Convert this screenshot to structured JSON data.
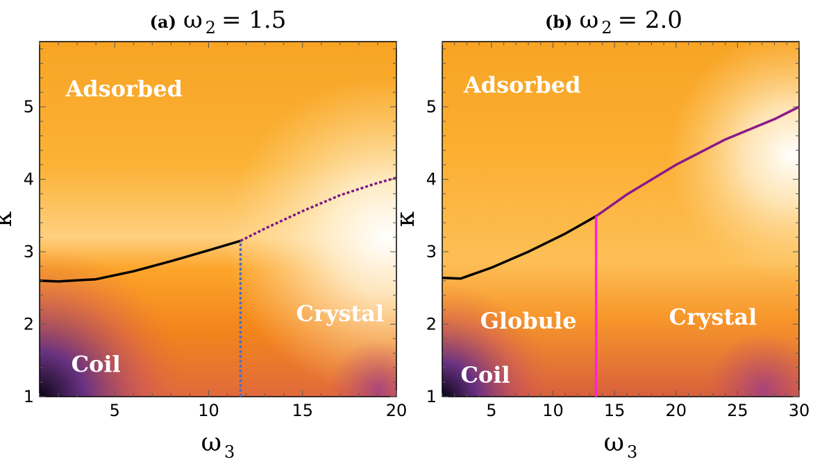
{
  "chart_data": [
    {
      "type": "heatmap",
      "panel_label": "(a)",
      "title_symbol": "ω",
      "title_subscript": "2",
      "title_value": "= 1.5",
      "xlabel_symbol": "ω",
      "xlabel_subscript": "3",
      "ylabel": "κ",
      "xlim": [
        1,
        20
      ],
      "ylim": [
        1,
        5.9
      ],
      "xticks": [
        5,
        10,
        15,
        20
      ],
      "yticks": [
        1,
        2,
        3,
        4,
        5
      ],
      "regions": [
        {
          "label": "Adsorbed",
          "x": 5.5,
          "y": 5.25
        },
        {
          "label": "Coil",
          "x": 4.0,
          "y": 1.45
        },
        {
          "label": "Crystal",
          "x": 17.0,
          "y": 2.15
        }
      ],
      "lines": [
        {
          "style": "solid",
          "color": "#000000",
          "x": [
            1,
            2,
            4,
            6,
            8,
            10,
            11.7
          ],
          "y": [
            2.6,
            2.59,
            2.62,
            2.73,
            2.87,
            3.02,
            3.15
          ]
        },
        {
          "style": "dotted",
          "color": "#7a1a85",
          "x": [
            11.7,
            13,
            15,
            17,
            19,
            20
          ],
          "y": [
            3.15,
            3.32,
            3.56,
            3.78,
            3.95,
            4.02
          ]
        },
        {
          "style": "dotted",
          "color": "#4f6fbf",
          "x": [
            11.7,
            11.7
          ],
          "y": [
            1,
            3.15
          ]
        }
      ]
    },
    {
      "type": "heatmap",
      "panel_label": "(b)",
      "title_symbol": "ω",
      "title_subscript": "2",
      "title_value": "= 2.0",
      "xlabel_symbol": "ω",
      "xlabel_subscript": "3",
      "ylabel": "κ",
      "xlim": [
        1,
        30
      ],
      "ylim": [
        1,
        5.9
      ],
      "xticks": [
        5,
        10,
        15,
        20,
        25,
        30
      ],
      "yticks": [
        1,
        2,
        3,
        4,
        5
      ],
      "regions": [
        {
          "label": "Adsorbed",
          "x": 7.5,
          "y": 5.3
        },
        {
          "label": "Globule",
          "x": 8.0,
          "y": 2.05
        },
        {
          "label": "Crystal",
          "x": 23.0,
          "y": 2.1
        },
        {
          "label": "Coil",
          "x": 4.5,
          "y": 1.3
        }
      ],
      "lines": [
        {
          "style": "solid",
          "color": "#000000",
          "x": [
            1,
            2.5,
            5,
            8,
            11,
            13.5
          ],
          "y": [
            2.64,
            2.63,
            2.78,
            3.0,
            3.25,
            3.49
          ]
        },
        {
          "style": "solid",
          "color": "#8a1a8a",
          "x": [
            13.5,
            16,
            20,
            24,
            28,
            30
          ],
          "y": [
            3.49,
            3.79,
            4.2,
            4.55,
            4.83,
            5.0
          ]
        },
        {
          "style": "solid",
          "color": "#ff22dd",
          "x": [
            13.5,
            13.5
          ],
          "y": [
            1,
            3.49
          ]
        }
      ]
    }
  ]
}
